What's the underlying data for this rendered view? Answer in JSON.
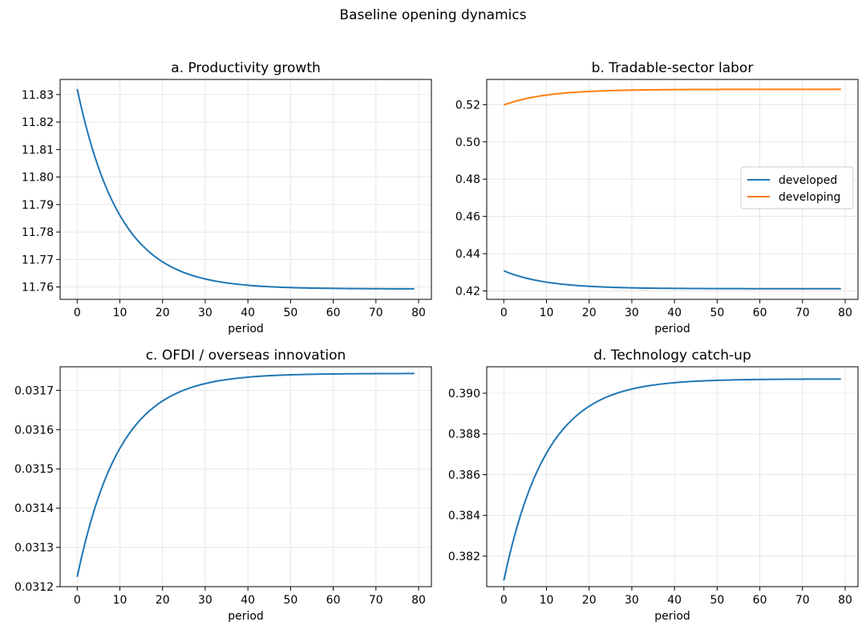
{
  "suptitle": "Baseline opening dynamics",
  "colors": {
    "developed": "#1f77b4",
    "developing": "#ff7f0e",
    "grid": "#e0e0e0"
  },
  "chart_data": [
    {
      "type": "line",
      "title": "a. Productivity growth",
      "xlabel": "period",
      "ylabel": "",
      "xlim": [
        -4,
        83
      ],
      "ylim": [
        11.7555,
        11.8355
      ],
      "xticks": [
        0,
        10,
        20,
        30,
        40,
        50,
        60,
        70,
        80
      ],
      "yticks": [
        11.76,
        11.77,
        11.78,
        11.79,
        11.8,
        11.81,
        11.82,
        11.83
      ],
      "ytick_labels": [
        "11.76",
        "11.77",
        "11.78",
        "11.79",
        "11.80",
        "11.81",
        "11.82",
        "11.83"
      ],
      "grid": true,
      "series": [
        {
          "start": 11.832,
          "end": 11.7593,
          "tau": 10,
          "n": 80
        }
      ]
    },
    {
      "type": "line",
      "title": "b. Tradable-sector labor",
      "xlabel": "period",
      "ylabel": "",
      "xlim": [
        -4,
        83
      ],
      "ylim": [
        0.4155,
        0.5335
      ],
      "xticks": [
        0,
        10,
        20,
        30,
        40,
        50,
        60,
        70,
        80
      ],
      "yticks": [
        0.42,
        0.44,
        0.46,
        0.48,
        0.5,
        0.52
      ],
      "ytick_labels": [
        "0.42",
        "0.44",
        "0.46",
        "0.48",
        "0.50",
        "0.52"
      ],
      "grid": true,
      "legend": {
        "location": "center-right",
        "entries": [
          "developed",
          "developing"
        ]
      },
      "series": [
        {
          "name": "developed",
          "start": 0.4308,
          "end": 0.4212,
          "tau": 10,
          "n": 80
        },
        {
          "name": "developing",
          "start": 0.5198,
          "end": 0.5282,
          "tau": 10,
          "n": 80
        }
      ]
    },
    {
      "type": "line",
      "title": "c. OFDI / overseas innovation",
      "xlabel": "period",
      "ylabel": "",
      "xlim": [
        -4,
        83
      ],
      "ylim": [
        0.0312,
        0.03176
      ],
      "xticks": [
        0,
        10,
        20,
        30,
        40,
        50,
        60,
        70,
        80
      ],
      "yticks": [
        0.0312,
        0.0313,
        0.0314,
        0.0315,
        0.0316,
        0.0317
      ],
      "ytick_labels": [
        "0.0312",
        "0.0313",
        "0.0314",
        "0.0315",
        "0.0316",
        "0.0317"
      ],
      "grid": true,
      "series": [
        {
          "start": 0.031225,
          "end": 0.031743,
          "tau": 10,
          "n": 80
        }
      ]
    },
    {
      "type": "line",
      "title": "d. Technology catch-up",
      "xlabel": "period",
      "ylabel": "",
      "xlim": [
        -4,
        83
      ],
      "ylim": [
        0.3805,
        0.3913
      ],
      "xticks": [
        0,
        10,
        20,
        30,
        40,
        50,
        60,
        70,
        80
      ],
      "yticks": [
        0.382,
        0.384,
        0.386,
        0.388,
        0.39
      ],
      "ytick_labels": [
        "0.382",
        "0.384",
        "0.386",
        "0.388",
        "0.390"
      ],
      "grid": true,
      "series": [
        {
          "start": 0.3808,
          "end": 0.3907,
          "tau": 10,
          "n": 80
        }
      ]
    }
  ]
}
